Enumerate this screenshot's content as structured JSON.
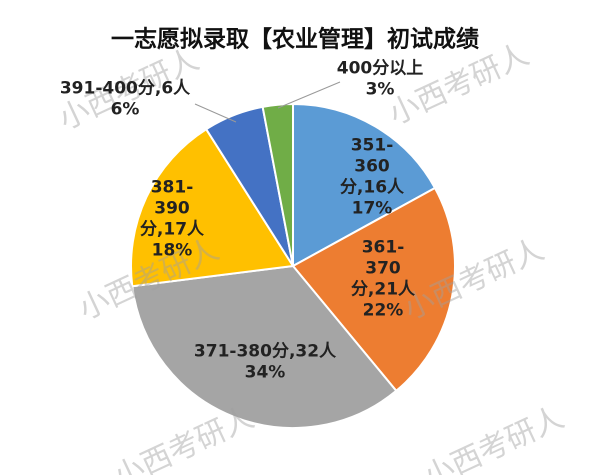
{
  "chart_data": {
    "type": "pie",
    "title": "一志愿拟录取【农业管理】初试成绩",
    "categories": [
      "351-360分,16人",
      "361-370分,21人",
      "371-380分,32人",
      "381-390分,17人",
      "391-400分,6人",
      "400分以上"
    ],
    "values": [
      17,
      22,
      34,
      18,
      6,
      3
    ],
    "value_labels": [
      "17%",
      "22%",
      "34%",
      "18%",
      "6%",
      "3%"
    ],
    "colors": [
      "#5b9bd5",
      "#ed7d31",
      "#a5a5a5",
      "#ffc000",
      "#4472c4",
      "#70ad47"
    ]
  },
  "watermark": "小西考研人"
}
